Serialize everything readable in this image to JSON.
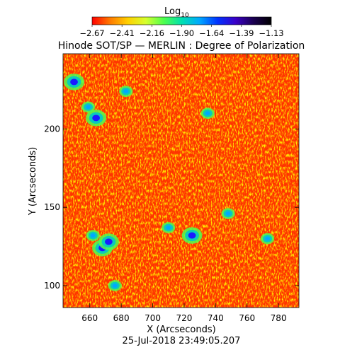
{
  "colorbar": {
    "label": "Log",
    "label_sub": "10",
    "tick_labels": [
      "−2.67",
      "−2.41",
      "−2.16",
      "−1.90",
      "−1.64",
      "−1.39",
      "−1.13"
    ],
    "range": [
      -2.67,
      -1.13
    ],
    "colormap": [
      "#ff0000",
      "#ff7a00",
      "#ffd000",
      "#d6ff2e",
      "#4dff4d",
      "#00e0b0",
      "#00a8ff",
      "#0033ff",
      "#3a00c8",
      "#1a0050",
      "#000000"
    ]
  },
  "chart_data": {
    "type": "heatmap",
    "title": "Hinode SOT/SP — MERLIN : Degree of Polarization",
    "xlabel": "X (Arcseconds)",
    "ylabel": "Y (Arcseconds)",
    "xlim": [
      643,
      793
    ],
    "ylim": [
      86,
      248
    ],
    "x_ticks": [
      660,
      680,
      700,
      720,
      740,
      760,
      780
    ],
    "y_ticks": [
      100,
      150,
      200
    ],
    "value_label": "Log10 degree of polarization",
    "value_range": [
      -2.67,
      -1.13
    ],
    "features": [
      {
        "x": 668,
        "y": 124,
        "level": "high"
      },
      {
        "x": 672,
        "y": 128,
        "level": "high"
      },
      {
        "x": 662,
        "y": 132,
        "level": "medium"
      },
      {
        "x": 725,
        "y": 132,
        "level": "high"
      },
      {
        "x": 710,
        "y": 137,
        "level": "medium"
      },
      {
        "x": 664,
        "y": 207,
        "level": "high"
      },
      {
        "x": 659,
        "y": 214,
        "level": "medium"
      },
      {
        "x": 735,
        "y": 210,
        "level": "medium"
      },
      {
        "x": 683,
        "y": 224,
        "level": "medium"
      },
      {
        "x": 650,
        "y": 230,
        "level": "high"
      },
      {
        "x": 748,
        "y": 146,
        "level": "medium"
      },
      {
        "x": 676,
        "y": 100,
        "level": "medium"
      },
      {
        "x": 773,
        "y": 130,
        "level": "medium"
      }
    ]
  },
  "footer": {
    "timestamp": "25-Jul-2018 23:49:05.207"
  }
}
